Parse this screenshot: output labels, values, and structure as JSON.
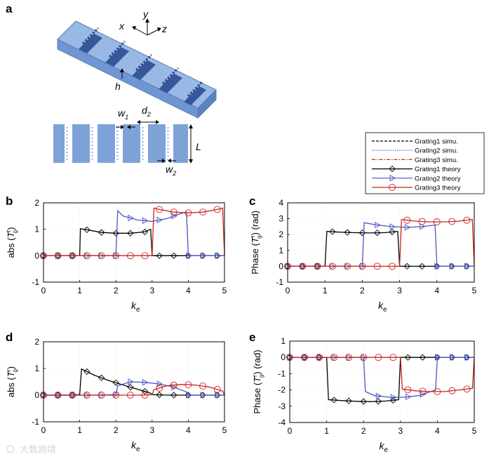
{
  "figure": {
    "panel_labels": [
      "a",
      "b",
      "c",
      "d",
      "e"
    ],
    "watermark": "大数跨境"
  },
  "diagram": {
    "axis_labels": {
      "x": "x",
      "y": "y",
      "z": "z"
    },
    "dim_h": "h",
    "dim_w1": "w",
    "dim_w1_sub": "1",
    "dim_d2": "d",
    "dim_d2_sub": "2",
    "dim_L": "L",
    "dim_w2": "w",
    "dim_w2_sub": "2"
  },
  "legend": {
    "entries": [
      {
        "label": "Grating1 simu.",
        "color": "#000000",
        "style": "dashed",
        "marker": "none"
      },
      {
        "label": "Grating2 simu.",
        "color": "#4d55c4",
        "style": "dotted",
        "marker": "none"
      },
      {
        "label": "Grating3 simu.",
        "color": "#c8241d",
        "style": "dashdot",
        "marker": "none"
      },
      {
        "label": "Grating1 theory",
        "color": "#000000",
        "style": "solid",
        "marker": "diamond"
      },
      {
        "label": "Grating2 theory",
        "color": "#4d55c4",
        "style": "solid",
        "marker": "triangle"
      },
      {
        "label": "Grating3 theory",
        "color": "#c8241d",
        "style": "solid",
        "marker": "circle"
      }
    ]
  },
  "chart_data": [
    {
      "panel": "b",
      "type": "line",
      "xlabel": "k",
      "xlabel_sub": "e",
      "ylabel_pre": "abs (",
      "ylabel_T": "T",
      "ylabel_sup": "t",
      "ylabel_sub": "g",
      "ylabel_post": ")",
      "xlim": [
        0,
        5
      ],
      "ylim": [
        -1,
        2
      ],
      "xticks": [
        0,
        1,
        2,
        3,
        4,
        5
      ],
      "yticks": [
        -1,
        0,
        1,
        2
      ],
      "series": [
        {
          "color": "#000000",
          "marker": "diamond",
          "x": [
            0,
            0.4,
            0.8,
            1.0,
            1.02,
            1.2,
            1.6,
            2.0,
            2.4,
            2.8,
            2.96,
            2.98,
            3.0,
            3.4,
            3.8,
            4.2,
            4.6,
            5.0
          ],
          "y": [
            0,
            0,
            0,
            0,
            1.02,
            0.98,
            0.88,
            0.85,
            0.85,
            0.9,
            1.0,
            0.5,
            0,
            0,
            0,
            0,
            0,
            0
          ]
        },
        {
          "color": "#4d55c4",
          "marker": "triangle",
          "x": [
            0,
            0.4,
            0.8,
            1.2,
            1.6,
            2.0,
            2.05,
            2.2,
            2.6,
            3.0,
            3.4,
            3.8,
            3.95,
            4.0,
            4.4,
            4.8,
            5.0
          ],
          "y": [
            0,
            0,
            0,
            0,
            0,
            0,
            1.7,
            1.5,
            1.35,
            1.3,
            1.4,
            1.6,
            1.65,
            0,
            0,
            0,
            0
          ]
        },
        {
          "color": "#c8241d",
          "marker": "circle",
          "x": [
            0,
            0.4,
            0.8,
            1.2,
            1.6,
            2.0,
            2.4,
            2.8,
            3.0,
            3.05,
            3.2,
            3.6,
            4.0,
            4.4,
            4.8,
            4.95,
            5.0
          ],
          "y": [
            0,
            0,
            0,
            0,
            0,
            0,
            0,
            0,
            0,
            1.8,
            1.75,
            1.65,
            1.62,
            1.65,
            1.75,
            1.8,
            0
          ]
        }
      ]
    },
    {
      "panel": "c",
      "type": "line",
      "xlabel": "k",
      "xlabel_sub": "e",
      "ylabel_pre": "Phase (",
      "ylabel_T": "T",
      "ylabel_sup": "t",
      "ylabel_sub": "g",
      "ylabel_post": ") (rad)",
      "xlim": [
        0,
        5
      ],
      "ylim": [
        -1,
        4
      ],
      "xticks": [
        0,
        1,
        2,
        3,
        4,
        5
      ],
      "yticks": [
        -1,
        0,
        1,
        2,
        3,
        4
      ],
      "series": [
        {
          "color": "#000000",
          "marker": "diamond",
          "x": [
            0,
            0.4,
            0.8,
            1.0,
            1.05,
            1.4,
            1.8,
            2.2,
            2.6,
            2.95,
            3.0,
            3.4,
            3.8,
            4.2,
            4.6,
            5.0
          ],
          "y": [
            0,
            0,
            0,
            0,
            2.2,
            2.15,
            2.12,
            2.1,
            2.12,
            2.2,
            0,
            0,
            0,
            0,
            0,
            0
          ]
        },
        {
          "color": "#4d55c4",
          "marker": "triangle",
          "x": [
            0,
            0.4,
            0.8,
            1.2,
            1.6,
            2.0,
            2.05,
            2.4,
            2.8,
            3.2,
            3.6,
            3.95,
            4.0,
            4.4,
            4.8,
            5.0
          ],
          "y": [
            0,
            0,
            0,
            0,
            0,
            0,
            2.75,
            2.6,
            2.5,
            2.45,
            2.5,
            2.6,
            0,
            0,
            0,
            0
          ]
        },
        {
          "color": "#c8241d",
          "marker": "circle",
          "x": [
            0,
            0.4,
            0.8,
            1.2,
            1.6,
            2.0,
            2.4,
            2.8,
            3.0,
            3.05,
            3.4,
            3.8,
            4.2,
            4.6,
            4.95,
            5.0
          ],
          "y": [
            0,
            0,
            0,
            0,
            0,
            0,
            0,
            0,
            0,
            2.95,
            2.85,
            2.8,
            2.8,
            2.85,
            2.95,
            0
          ]
        }
      ]
    },
    {
      "panel": "d",
      "type": "line",
      "xlabel": "k",
      "xlabel_sub": "e",
      "ylabel_pre": "abs (",
      "ylabel_T": "T",
      "ylabel_sup": "r",
      "ylabel_sub": "g",
      "ylabel_post": ")",
      "xlim": [
        0,
        5
      ],
      "ylim": [
        -1,
        2
      ],
      "xticks": [
        0,
        1,
        2,
        3,
        4,
        5
      ],
      "yticks": [
        -1,
        0,
        1,
        2
      ],
      "series": [
        {
          "color": "#000000",
          "marker": "diamond",
          "x": [
            0,
            0.4,
            0.8,
            1.0,
            1.05,
            1.4,
            1.8,
            2.2,
            2.6,
            2.95,
            3.0,
            3.4,
            3.8,
            4.2,
            4.6,
            5.0
          ],
          "y": [
            0,
            0,
            0,
            0.02,
            0.98,
            0.75,
            0.55,
            0.38,
            0.22,
            0.08,
            0.02,
            0,
            0,
            0,
            0,
            0
          ]
        },
        {
          "color": "#4d55c4",
          "marker": "triangle",
          "x": [
            0,
            0.4,
            0.8,
            1.2,
            1.6,
            2.0,
            2.05,
            2.4,
            2.8,
            3.2,
            3.6,
            3.95,
            4.0,
            4.4,
            4.8,
            5.0
          ],
          "y": [
            0,
            0,
            0,
            0,
            0,
            0.02,
            0.35,
            0.5,
            0.48,
            0.42,
            0.3,
            0.12,
            0,
            0,
            0,
            0
          ]
        },
        {
          "color": "#c8241d",
          "marker": "circle",
          "x": [
            0,
            0.4,
            0.8,
            1.2,
            1.6,
            2.0,
            2.4,
            2.8,
            3.0,
            3.05,
            3.4,
            3.8,
            4.2,
            4.6,
            4.95,
            5.0
          ],
          "y": [
            0,
            0,
            0,
            0,
            0,
            0,
            0,
            0,
            0.02,
            0.2,
            0.35,
            0.4,
            0.38,
            0.3,
            0.15,
            0
          ]
        }
      ]
    },
    {
      "panel": "e",
      "type": "line",
      "xlabel": "k",
      "xlabel_sub": "e",
      "ylabel_pre": "Phase (",
      "ylabel_T": "T",
      "ylabel_sup": "r",
      "ylabel_sub": "g",
      "ylabel_post": ") (rad)",
      "xlim": [
        0,
        5
      ],
      "ylim": [
        -4,
        1
      ],
      "xticks": [
        0,
        1,
        2,
        3,
        4,
        5
      ],
      "yticks": [
        -4,
        -3,
        -2,
        -1,
        0,
        1
      ],
      "series": [
        {
          "color": "#000000",
          "marker": "diamond",
          "x": [
            0,
            0.4,
            0.8,
            1.0,
            1.05,
            1.4,
            1.8,
            2.2,
            2.6,
            2.95,
            3.0,
            3.4,
            3.8,
            4.2,
            4.6,
            5.0
          ],
          "y": [
            0,
            0,
            0,
            0,
            -2.6,
            -2.65,
            -2.7,
            -2.72,
            -2.68,
            -2.6,
            0,
            0,
            0,
            0,
            0,
            0
          ]
        },
        {
          "color": "#4d55c4",
          "marker": "triangle",
          "x": [
            0,
            0.4,
            0.8,
            1.2,
            1.6,
            2.0,
            2.05,
            2.3,
            2.7,
            3.1,
            3.5,
            3.95,
            4.0,
            4.4,
            4.8,
            5.0
          ],
          "y": [
            0,
            0,
            0,
            0,
            0,
            0,
            -2.1,
            -2.35,
            -2.45,
            -2.45,
            -2.35,
            -2.0,
            0,
            0,
            0,
            0
          ]
        },
        {
          "color": "#c8241d",
          "marker": "circle",
          "x": [
            0,
            0.4,
            0.8,
            1.2,
            1.6,
            2.0,
            2.4,
            2.8,
            3.0,
            3.05,
            3.4,
            3.8,
            4.2,
            4.6,
            4.95,
            5.0
          ],
          "y": [
            0,
            0,
            0,
            0,
            0,
            0,
            0,
            0,
            0,
            -1.95,
            -2.05,
            -2.1,
            -2.1,
            -2.0,
            -1.9,
            0
          ]
        }
      ]
    }
  ]
}
